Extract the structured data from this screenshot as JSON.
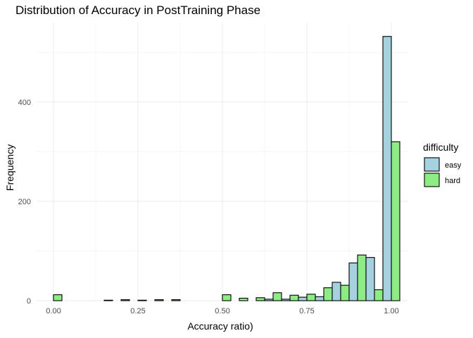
{
  "chart_data": {
    "type": "bar",
    "title": "Distribution of Accuracy in PostTraining Phase",
    "xlabel": "Accuracy ratio)",
    "ylabel": "Frequency",
    "x_ticks": [
      "0.00",
      "0.25",
      "0.50",
      "0.75",
      "1.00"
    ],
    "x_tick_values": [
      0.0,
      0.25,
      0.5,
      0.75,
      1.0
    ],
    "y_ticks": [
      "0",
      "200",
      "400"
    ],
    "y_tick_values": [
      0,
      200,
      400
    ],
    "xlim": [
      -0.05,
      1.05
    ],
    "ylim": [
      0,
      560
    ],
    "grid": true,
    "legend": {
      "title": "difficulty",
      "position": "right"
    },
    "bin_centers": [
      0.0,
      0.05,
      0.1,
      0.15,
      0.2,
      0.25,
      0.3,
      0.35,
      0.4,
      0.45,
      0.5,
      0.55,
      0.6,
      0.65,
      0.7,
      0.75,
      0.8,
      0.85,
      0.9,
      0.95,
      1.0
    ],
    "series": [
      {
        "name": "easy",
        "color": "#a6d2e0",
        "values": [
          0,
          0,
          0,
          0,
          0,
          0,
          0,
          0,
          0,
          0,
          0,
          0,
          0,
          3,
          3,
          7,
          8,
          37,
          76,
          87,
          532
        ]
      },
      {
        "name": "hard",
        "color": "#8ded84",
        "values": [
          12,
          0,
          0,
          1,
          2,
          1,
          2,
          2,
          0,
          0,
          12,
          5,
          6,
          16,
          11,
          13,
          26,
          31,
          92,
          22,
          320
        ]
      }
    ]
  }
}
